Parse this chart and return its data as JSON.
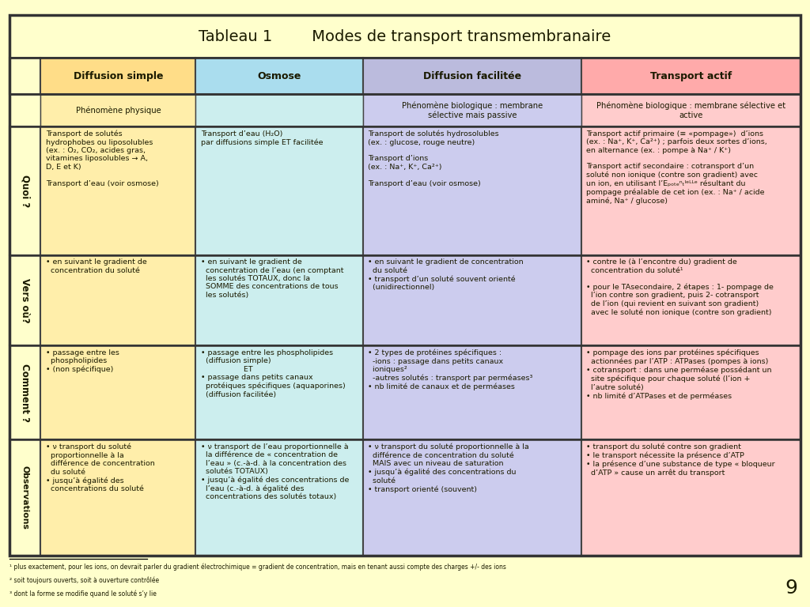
{
  "title": "Tableau 1        Modes de transport transmembranaire",
  "bg_color": "#FFFFCC",
  "border_color": "#555555",
  "col_headers": [
    "Diffusion simple",
    "Osmose",
    "Diffusion facilitée",
    "Transport actif"
  ],
  "col_header_bg": [
    "#FFDD88",
    "#AADDEE",
    "#BBBBDD",
    "#FFAAAA"
  ],
  "phenom_bgs": [
    "#FFEEAA",
    "#CCEEEE",
    "#CCCCEE",
    "#FFCCCC"
  ],
  "quoi_bgs": [
    "#FFEEAA",
    "#CCEEEE",
    "#CCCCEE",
    "#FFCCCC"
  ],
  "vers_bgs": [
    "#FFEEAA",
    "#CCEEEE",
    "#CCCCEE",
    "#FFCCCC"
  ],
  "comment_bgs": [
    "#FFEEAA",
    "#CCEEEE",
    "#CCCCEE",
    "#FFCCCC"
  ],
  "obs_bgs": [
    "#FFEEAA",
    "#CCEEEE",
    "#CCCCEE",
    "#FFCCCC"
  ],
  "row_label_bg": "#FFFFCC",
  "footnotes": [
    "¹ plus exactement, pour les ions, on devrait parler du gradient électrochimique = gradient de concentration, mais en tenant aussi compte des charges +/- des ions",
    "² soit toujours ouverts, soit à ouverture contrôlée",
    "³ dont la forme se modifie quand le soluté s’y lie"
  ],
  "page_number": "9",
  "phenom_texts": [
    "Phénomène physique",
    "",
    "Phénomène biologique : membrane\nsélective mais passive",
    "Phénomène biologique : membrane sélective et\nactive"
  ],
  "quoi_texts": [
    "Transport de solutés\nhydrophobes ou liposolubles\n(ex. : O₂, CO₂, acides gras,\nvitamines liposolubles → A,\nD, E et K)\n\nTransport d’eau (voir osmose)",
    "Transport d’eau (H₂O)\npar diffusions simple ET facilitée",
    "Transport de solutés hydrosolubles\n(ex. : glucose, rouge neutre)\n\nTransport d’ions\n(ex. : Na⁺, K⁺, Ca²⁺)\n\nTransport d’eau (voir osmose)",
    "Transport actif primaire (≡ «pompage»)  d’ions\n(ex. : Na⁺, K⁺, Ca²⁺) ; parfois deux sortes d’ions,\nen alternance (ex. : pompe à Na⁺ / K⁺)\n\nTransport actif secondaire : cotransport d’un\nsoluté non ionique (contre son gradient) avec\nun ion, en utilisant l’Eₚₒₜₑⁿₜᴵᵉᴸᴸᵉ résultant du\npompage préalable de cet ion (ex. : Na⁺ / acide\naminé, Na⁺ / glucose)"
  ],
  "vers_texts": [
    "• en suivant le gradient de\n  concentration du soluté",
    "• en suivant le gradient de\n  concentration de l’eau (en comptant\n  les solutés TOTAUX, donc la\n  SOMME des concentrations de tous\n  les solutés)",
    "• en suivant le gradient de concentration\n  du soluté\n• transport d’un soluté souvent orienté\n  (unidirectionnel)",
    "• contre le (à l’encontre du) gradient de\n  concentration du soluté¹\n\n• pour le TAsecondaire, 2 étapes : 1- pompage de\n  l’ion contre son gradient, puis 2- cotransport\n  de l’ion (qui revient en suivant son gradient)\n  avec le soluté non ionique (contre son gradient)"
  ],
  "comment_texts": [
    "• passage entre les\n  phospholipides\n• (non spécifique)",
    "• passage entre les phospholipides\n  (diffusion simple)\n                  ET\n• passage dans petits canaux\n  protéiques spécifiques (aquaporines)\n  (diffusion facilitée)",
    "• 2 types de protéines spécifiques :\n  -ions : passage dans petits canaux\n  ioniques²\n  -autres solutés : transport par perméases³\n• nb limité de canaux et de perméases",
    "• pompage des ions par protéines spécifiques\n  actionnées par l’ATP : ATPases (pompes à ions)\n• cotransport : dans une perméase possédant un\n  site spécifique pour chaque soluté (l’ion +\n  l’autre soluté)\n• nb limité d’ATPases et de perméases"
  ],
  "obs_texts": [
    "• ν transport du soluté\n  proportionnelle à la\n  différence de concentration\n  du soluté\n• jusqu’à égalité des\n  concentrations du soluté",
    "• ν transport de l’eau proportionnelle à\n  la différence de « concentration de\n  l’eau » (c.-à-d. à la concentration des\n  solutés TOTAUX)\n• jusqu’à égalité des concentrations de\n  l’eau (c.-à-d. à égalité des\n  concentrations des solutés totaux)",
    "• ν transport du soluté proportionnelle à la\n  différence de concentration du soluté\n  MAIS avec un niveau de saturation\n• jusqu’à égalité des concentrations du\n  soluté\n• transport orienté (souvent)",
    "• transport du soluté contre son gradient\n• le transport nécessite la présence d’ATP\n• la présence d’une substance de type « bloqueur\n  d’ATP » cause un arrêt du transport"
  ]
}
